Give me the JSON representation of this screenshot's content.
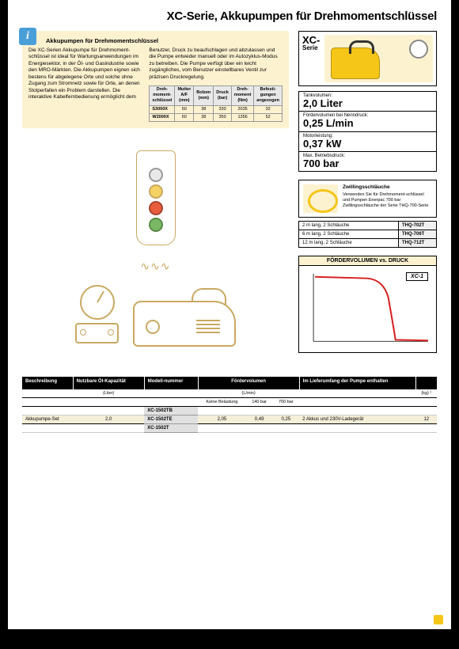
{
  "title": "XC-Serie, Akkupumpen für Drehmomentschlüssel",
  "infobox": {
    "heading": "Akkupumpen für Drehmomentschlüssel",
    "col1": "Die XC-Serien Akkupumpe für Drehmoment-schlüssel ist ideal für Wartungsanwendungen im Energiesektor, in der Öl- und Gasindustrie sowie den MRO-Märkten. Die Akkupumpen eignen sich bestens für abgelegene Orte und solche ohne Zugang zum Stromnetz sowie für Orte, an denen Stolperfallen ein Problem darstellen. Die interaktive Kabelfernbedienung ermöglicht dem",
    "col2": "Benutzer, Druck zu beaufschlagen und abzulassen und die Pumpe entweder manuell oder im Autozyklus-Modus zu betreiben. Die Pumpe verfügt über ein leicht zugängliches, vom Benutzer einstellbares Ventil zur präzisen Druckregelung."
  },
  "minitable": {
    "headers": [
      "Dreh-moment-schlüssel",
      "Mutter A/F (mm)",
      "Bolzen (mm)",
      "Druck (bar)",
      "Dreh-moment (Nm)",
      "Befesti-gungen angezogen"
    ],
    "rows": [
      [
        "S3000X",
        "60",
        "38",
        "330",
        "2035",
        "32"
      ],
      [
        "W2000X",
        "60",
        "38",
        "350",
        "1356",
        "52"
      ]
    ]
  },
  "hero": {
    "label": "XC-",
    "sub": "Serie"
  },
  "specs": [
    {
      "label": "Tankvolumen:",
      "value": "2,0 Liter"
    },
    {
      "label": "Fördervolumen bei Nenndruck:",
      "value": "0,25 L/min"
    },
    {
      "label": "Motorleistung:",
      "value": "0,37 kW"
    },
    {
      "label": "Max. Betriebsdruck:",
      "value": "700 bar"
    }
  ],
  "hose": {
    "title": "Zwillingsschläuche",
    "text": "Verwenden Sie für Drehmoment-schlüssel und Pumpen Enerpac 700 bar Zwillingsschläuche der Serie THQ-700-Serie",
    "rows": [
      {
        "desc": "2 m lang, 2 Schläuche",
        "model": "THQ-702T"
      },
      {
        "desc": "6 m lang, 2 Schläuche",
        "model": "THQ-706T"
      },
      {
        "desc": "12 m lang, 2 Schläuche",
        "model": "THQ-712T"
      }
    ]
  },
  "chart": {
    "title": "FÖRDERVOLUMEN vs. DRUCK",
    "series": "XC-1",
    "curve_color": "#d62020"
  },
  "bigtable": {
    "headers": [
      "Beschreibung",
      "Nutzbare Öl-Kapazität",
      "Modell-nummer",
      "Fördervolumen",
      "Im Lieferumfang der Pumpe enthalten",
      ""
    ],
    "units": [
      "",
      "(Liter)",
      "",
      "(L/min)",
      "",
      "(kg) ¹"
    ],
    "subcols": [
      "Keine Belastung",
      "140 bar",
      "700 bar"
    ],
    "models": [
      "XC-1502TB",
      "XC-1502TE",
      "XC-1502T"
    ],
    "row": {
      "desc": "Akkupumpe-Set",
      "cap": "2,0",
      "f0": "2,05",
      "f1": "0,49",
      "f2": "0,25",
      "incl": "2 Akkus und 230V-Ladegerät",
      "wt": "12"
    }
  }
}
